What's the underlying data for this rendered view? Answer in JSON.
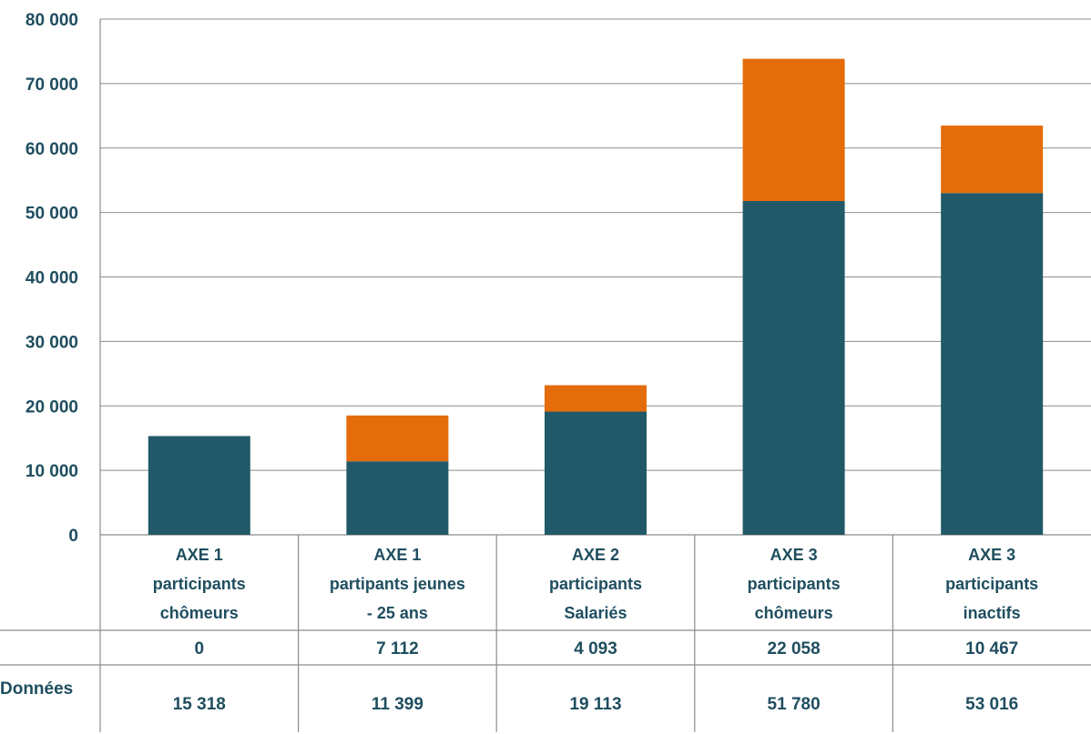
{
  "chart_data": {
    "type": "bar",
    "stacked": true,
    "ylim": [
      0,
      80000
    ],
    "yticks": [
      0,
      10000,
      20000,
      30000,
      40000,
      50000,
      60000,
      70000,
      80000
    ],
    "ytick_labels": [
      "0",
      "10 000",
      "20 000",
      "30 000",
      "40 000",
      "50 000",
      "60 000",
      "70 000",
      "80 000"
    ],
    "grid": true,
    "categories": [
      [
        "AXE 1",
        "participants",
        "chômeurs"
      ],
      [
        "AXE 1",
        "partipants jeunes",
        "- 25 ans"
      ],
      [
        "AXE 2",
        "participants",
        "Salariés"
      ],
      [
        "AXE 3",
        "participants",
        "chômeurs"
      ],
      [
        "AXE 3",
        "participants",
        "inactifs"
      ]
    ],
    "series": [
      {
        "color": "#215968",
        "values": [
          15318,
          11399,
          19113,
          51780,
          53016
        ],
        "value_labels": [
          "15 318",
          "11 399",
          "19 113",
          "51 780",
          "53 016"
        ],
        "row_label": "Données"
      },
      {
        "color": "#e46c0a",
        "values": [
          0,
          7112,
          4093,
          22058,
          10467
        ],
        "value_labels": [
          "0",
          "7 112",
          "4 093",
          "22 058",
          "10 467"
        ],
        "row_label": ""
      }
    ]
  }
}
